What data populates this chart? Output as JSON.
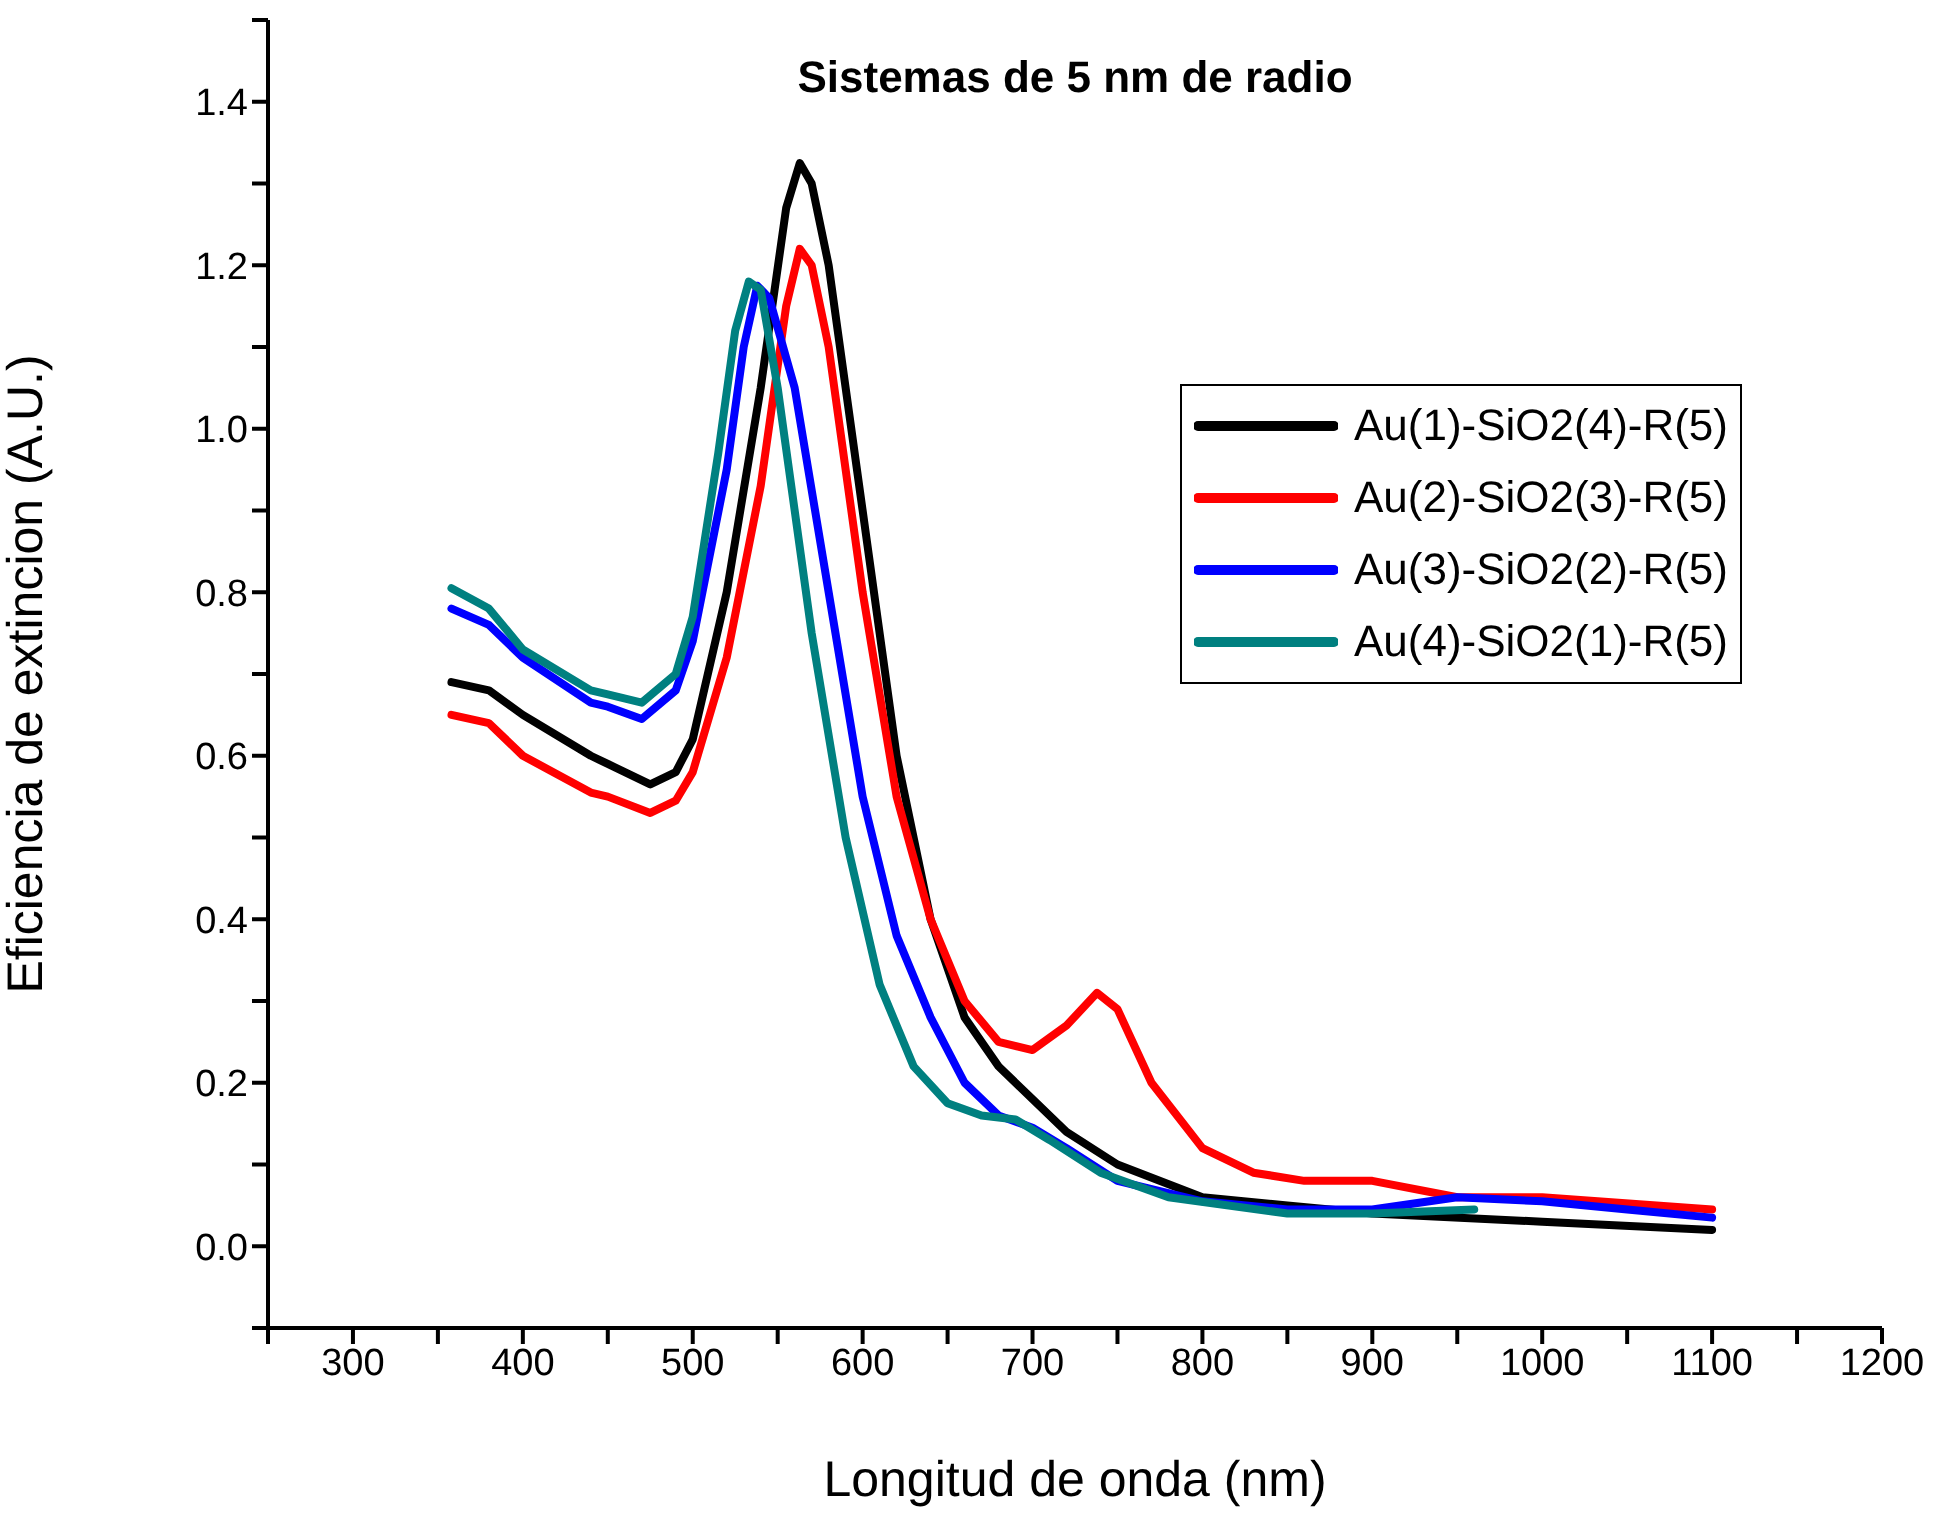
{
  "chart_data": {
    "type": "line",
    "title": "Sistemas de 5 nm de radio",
    "xlabel": "Longitud de onda (nm)",
    "ylabel": "Eficiencia de extincion (A.U.)",
    "xlim": [
      250,
      1200
    ],
    "xticks": [
      {
        "value": 250,
        "label": null
      },
      300,
      {
        "value": 350,
        "label": null
      },
      400,
      {
        "value": 450,
        "label": null
      },
      500,
      {
        "value": 550,
        "label": null
      },
      600,
      {
        "value": 650,
        "label": null
      },
      700,
      {
        "value": 750,
        "label": null
      },
      800,
      {
        "value": 850,
        "label": null
      },
      900,
      {
        "value": 950,
        "label": null
      },
      1000,
      {
        "value": 1050,
        "label": null
      },
      1100,
      {
        "value": 1150,
        "label": null
      },
      1200
    ],
    "ylim": [
      -0.1,
      1.5
    ],
    "yticks": [
      {
        "value": -0.1,
        "label": null
      },
      {
        "value": 0,
        "label": "0.0"
      },
      {
        "value": 0.1,
        "label": null
      },
      0.2,
      {
        "value": 0.3,
        "label": null
      },
      0.4,
      {
        "value": 0.5,
        "label": null
      },
      0.6,
      {
        "value": 0.7,
        "label": null
      },
      0.8,
      {
        "value": 0.9,
        "label": null
      },
      {
        "value": 1,
        "label": "1.0"
      },
      {
        "value": 1.1,
        "label": null
      },
      1.2,
      {
        "value": 1.3,
        "label": null
      },
      1.4,
      {
        "value": 1.5,
        "label": null
      }
    ],
    "grid": false,
    "legend": "right",
    "marker": "none",
    "line_style": "solid",
    "series": [
      {
        "name": "Au(1)-SiO2(4)-R(5)",
        "color": "#000000",
        "x": [
          358,
          380,
          400,
          440,
          450,
          475,
          490,
          500,
          520,
          540,
          555,
          563,
          570,
          580,
          600,
          620,
          640,
          660,
          680,
          700,
          720,
          750,
          800,
          850,
          900,
          1000,
          1100
        ],
        "values": [
          0.69,
          0.68,
          0.65,
          0.6,
          0.59,
          0.565,
          0.58,
          0.62,
          0.8,
          1.05,
          1.27,
          1.325,
          1.3,
          1.2,
          0.9,
          0.6,
          0.4,
          0.28,
          0.22,
          0.18,
          0.14,
          0.1,
          0.06,
          0.05,
          0.04,
          0.03,
          0.02
        ]
      },
      {
        "name": "Au(2)-SiO2(3)-R(5)",
        "color": "#ff0000",
        "x": [
          358,
          380,
          400,
          440,
          450,
          475,
          490,
          500,
          520,
          540,
          555,
          563,
          570,
          580,
          600,
          620,
          640,
          660,
          680,
          700,
          720,
          738,
          750,
          770,
          800,
          830,
          860,
          900,
          950,
          1000,
          1100
        ],
        "values": [
          0.65,
          0.64,
          0.6,
          0.555,
          0.55,
          0.53,
          0.545,
          0.58,
          0.72,
          0.93,
          1.15,
          1.22,
          1.2,
          1.1,
          0.8,
          0.55,
          0.4,
          0.3,
          0.25,
          0.24,
          0.27,
          0.31,
          0.29,
          0.2,
          0.12,
          0.09,
          0.08,
          0.08,
          0.06,
          0.06,
          0.045
        ]
      },
      {
        "name": "Au(3)-SiO2(2)-R(5)",
        "color": "#0000ff",
        "x": [
          358,
          380,
          400,
          440,
          450,
          470,
          490,
          500,
          520,
          530,
          538,
          545,
          560,
          580,
          600,
          620,
          640,
          660,
          680,
          700,
          720,
          750,
          800,
          850,
          900,
          950,
          1000,
          1050,
          1100
        ],
        "values": [
          0.78,
          0.76,
          0.72,
          0.665,
          0.66,
          0.645,
          0.68,
          0.74,
          0.95,
          1.1,
          1.175,
          1.16,
          1.05,
          0.8,
          0.55,
          0.38,
          0.28,
          0.2,
          0.16,
          0.145,
          0.12,
          0.08,
          0.055,
          0.045,
          0.045,
          0.06,
          0.055,
          0.045,
          0.035
        ]
      },
      {
        "name": "Au(4)-SiO2(1)-R(5)",
        "color": "#008080",
        "x": [
          358,
          380,
          400,
          440,
          450,
          470,
          490,
          500,
          515,
          525,
          533,
          540,
          550,
          570,
          590,
          610,
          630,
          650,
          670,
          690,
          710,
          740,
          780,
          850,
          900,
          960
        ],
        "values": [
          0.805,
          0.78,
          0.73,
          0.68,
          0.675,
          0.665,
          0.7,
          0.77,
          0.97,
          1.12,
          1.18,
          1.17,
          1.05,
          0.75,
          0.5,
          0.32,
          0.22,
          0.175,
          0.16,
          0.155,
          0.13,
          0.09,
          0.06,
          0.04,
          0.04,
          0.045
        ]
      }
    ]
  }
}
